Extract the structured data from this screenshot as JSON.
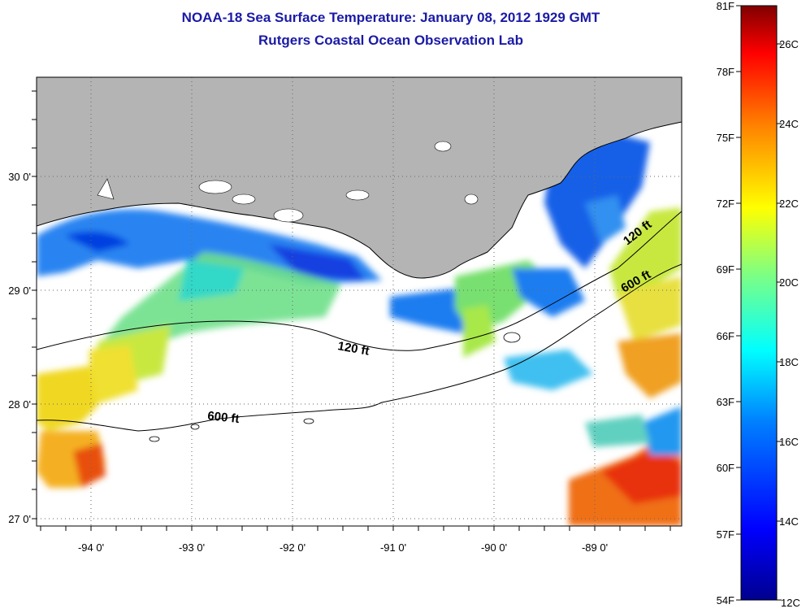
{
  "title_line1": "NOAA-18 Sea Surface Temperature:  January 08, 2012 1929 GMT",
  "title_line2": "Rutgers Coastal Ocean Observation Lab",
  "map": {
    "lat_labels": [
      "30 0'",
      "29 0'",
      "28 0'",
      "27 0'"
    ],
    "lon_labels": [
      "-94 0'",
      "-93 0'",
      "-92 0'",
      "-91 0'",
      "-90 0'",
      "-89 0'"
    ],
    "contour_labels": {
      "shelf_120": "120 ft",
      "shelf_600": "600 ft"
    },
    "land_color": "#b4b4b4",
    "cloud_color": "#ffffff"
  },
  "colorbar": {
    "f_labels": [
      "81F",
      "78F",
      "75F",
      "72F",
      "69F",
      "66F",
      "63F",
      "60F",
      "57F",
      "54F"
    ],
    "c_labels": [
      "26C",
      "24C",
      "22C",
      "20C",
      "18C",
      "16C",
      "14C",
      "12C"
    ],
    "colors": [
      "#00008f",
      "#0000ff",
      "#0080ff",
      "#00ffff",
      "#80ff80",
      "#ffff00",
      "#ff8000",
      "#ff0000",
      "#800000"
    ]
  }
}
